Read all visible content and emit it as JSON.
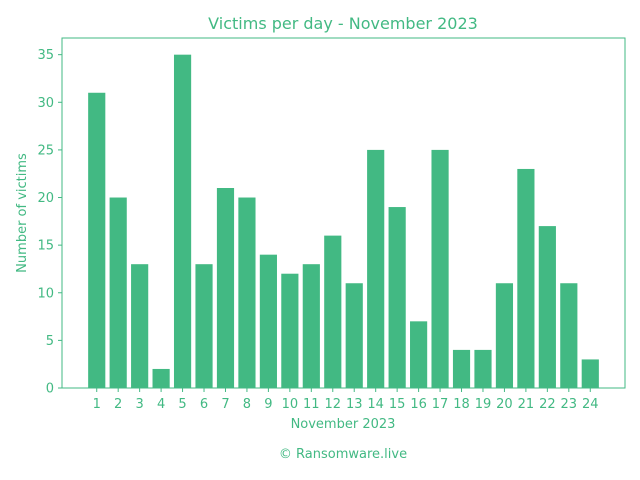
{
  "colors": {
    "accent": "#42b983",
    "background": "#ffffff"
  },
  "chart_data": {
    "type": "bar",
    "title": "Victims per day - November 2023",
    "xlabel": "November 2023",
    "ylabel": "Number of victims",
    "categories": [
      "1",
      "2",
      "3",
      "4",
      "5",
      "6",
      "7",
      "8",
      "9",
      "10",
      "11",
      "12",
      "13",
      "14",
      "15",
      "16",
      "17",
      "18",
      "19",
      "20",
      "21",
      "22",
      "23",
      "24"
    ],
    "values": [
      31,
      20,
      13,
      2,
      35,
      13,
      21,
      20,
      14,
      12,
      13,
      16,
      11,
      25,
      19,
      7,
      25,
      4,
      4,
      11,
      23,
      17,
      11,
      3
    ],
    "ylim": [
      0,
      36.75
    ],
    "yticks": [
      "0",
      "5",
      "10",
      "15",
      "20",
      "25",
      "30",
      "35"
    ],
    "grid": false,
    "legend": "none"
  },
  "footer": {
    "credit": "© Ransomware.live"
  }
}
